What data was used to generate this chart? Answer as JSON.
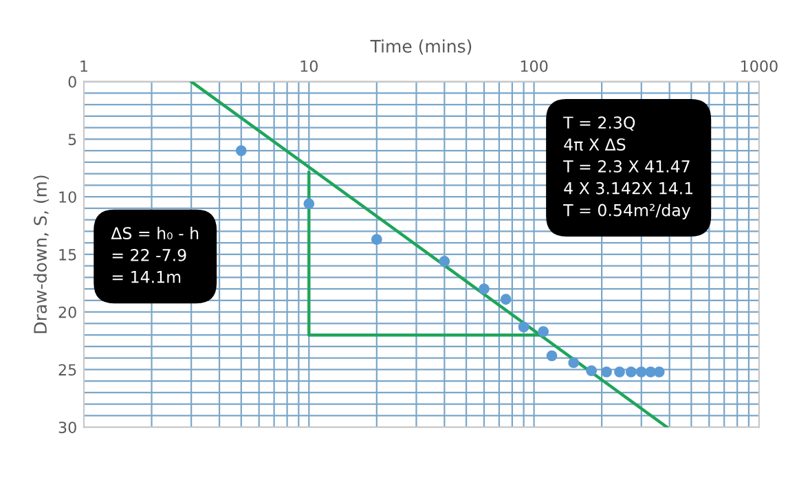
{
  "chart_data": {
    "type": "scatter",
    "xlabel": "Time (mins)",
    "ylabel": "Draw-down, S, (m)",
    "log": "x",
    "grid": true,
    "legend": false,
    "line_style": "solid",
    "xlim": [
      1,
      1000
    ],
    "xticks": [
      1,
      10,
      100,
      1000
    ],
    "ylim": [
      30,
      0
    ],
    "yticks": [
      0,
      5,
      10,
      15,
      20,
      25,
      30
    ],
    "series": [
      {
        "marker": "circle",
        "color": "#5b9bd5",
        "x": [
          5,
          10,
          20,
          40,
          60,
          75,
          90,
          110,
          120,
          150,
          180,
          210,
          240,
          270,
          300,
          330,
          360
        ],
        "values": [
          6,
          10.6,
          13.7,
          15.6,
          18,
          18.9,
          21.3,
          21.7,
          23.8,
          24.4,
          25.1,
          25.2,
          25.2,
          25.2,
          25.2,
          25.2,
          25.2
        ]
      },
      {
        "type": "line",
        "color": "#1fa55a",
        "x": [
          3,
          390
        ],
        "values": [
          0,
          30
        ]
      },
      {
        "type": "line",
        "color": "#1fa55a",
        "x": [
          10,
          10,
          105
        ],
        "values": [
          7.9,
          22,
          22
        ]
      }
    ],
    "annotations": [
      "ΔS = h₀ - h\n= 22 -7.9\n= 14.1m",
      "T = 2.3Q\n4π X ΔS\nT = 2.3 X 41.47\n4 X 3.142X 14.1\nT = 0.54m²/day"
    ]
  }
}
